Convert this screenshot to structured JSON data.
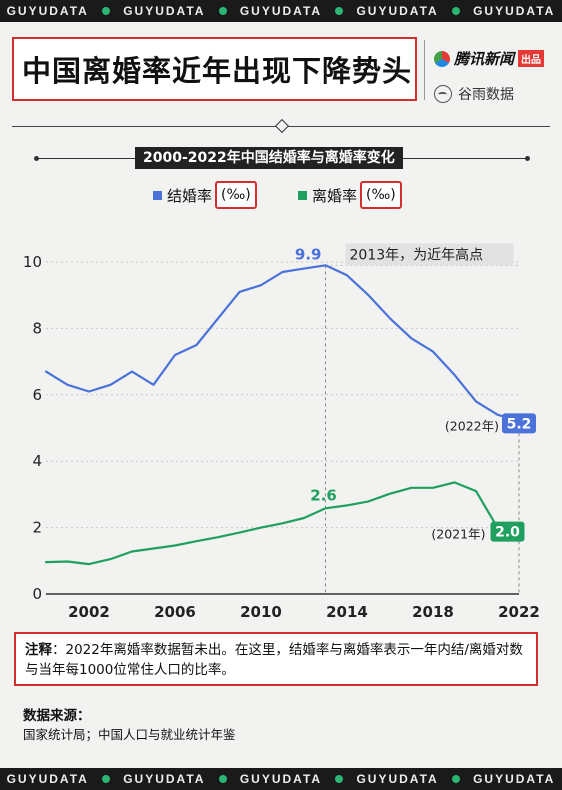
{
  "watermark": "GUYUDATA",
  "title": "中国离婚率近年出现下降势头",
  "brand": {
    "tencent": "腾讯新闻",
    "tencent_badge": "出品",
    "guyu": "谷雨数据"
  },
  "colors": {
    "marriage": "#4a72d8",
    "divorce": "#1fa05e",
    "highlight": "#d32f2f"
  },
  "note": {
    "label": "注释",
    "text": "：2022年离婚率数据暂未出。在这里，结婚率与离婚率表示一年内结/离婚对数与当年每1000位常住人口的比率。"
  },
  "source": {
    "label": "数据来源：",
    "text": "国家统计局；中国人口与就业统计年鉴"
  },
  "chart_data": {
    "type": "line",
    "title": "2000-2022年中国结婚率与离婚率变化",
    "x": [
      2000,
      2001,
      2002,
      2003,
      2004,
      2005,
      2006,
      2007,
      2008,
      2009,
      2010,
      2011,
      2012,
      2013,
      2014,
      2015,
      2016,
      2017,
      2018,
      2019,
      2020,
      2021,
      2022
    ],
    "xticks": [
      "2002",
      "2006",
      "2010",
      "2014",
      "2018",
      "2022"
    ],
    "yticks": [
      "0",
      "2",
      "4",
      "6",
      "8",
      "10"
    ],
    "ylim": [
      0,
      10
    ],
    "series": [
      {
        "name": "结婚率",
        "unit": "(‰)",
        "values": [
          6.7,
          6.3,
          6.1,
          6.3,
          6.7,
          6.3,
          7.2,
          7.5,
          8.3,
          9.1,
          9.3,
          9.7,
          9.8,
          9.9,
          9.6,
          9.0,
          8.3,
          7.7,
          7.3,
          6.6,
          5.8,
          5.4,
          5.2
        ]
      },
      {
        "name": "离婚率",
        "unit": "(‰)",
        "values": [
          0.96,
          0.98,
          0.9,
          1.05,
          1.28,
          1.37,
          1.46,
          1.59,
          1.71,
          1.85,
          2.0,
          2.13,
          2.29,
          2.58,
          2.67,
          2.79,
          3.02,
          3.2,
          3.2,
          3.36,
          3.1,
          2.0,
          null
        ]
      }
    ],
    "annotations": {
      "peak_value": "9.9",
      "peak_text": "2013年，为近年高点",
      "divorce_2013": "2.6",
      "end_marriage_label": "(2022年)",
      "end_marriage_value": "5.2",
      "end_divorce_label": "(2021年)",
      "end_divorce_value": "2.0"
    },
    "grid": "horizontal-dashed",
    "legend": "top-center"
  }
}
